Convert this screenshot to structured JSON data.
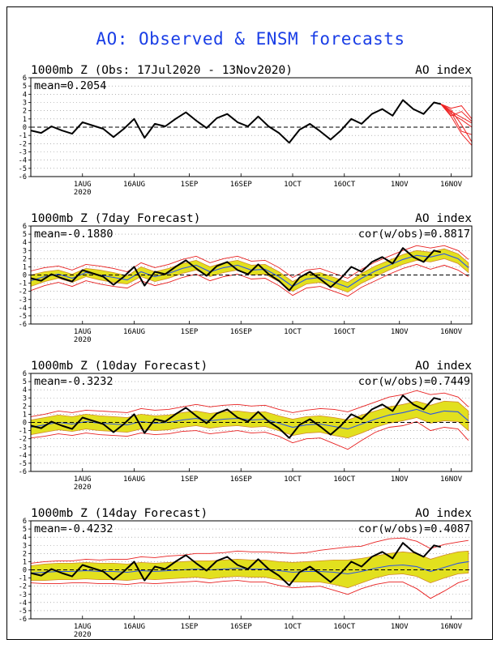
{
  "main_title": "AO: Observed & ENSM forecasts",
  "colors": {
    "title": "#1a3ee6",
    "observed": "#000000",
    "ensemble_mean": "#2a55e8",
    "spread_fill": "#e2e01e",
    "spread_edge": "#d28a2a",
    "envelope": "#e82020",
    "forecast_member": "#ee2222",
    "zero_line": "#000000",
    "grid": "#888888"
  },
  "x_axis": {
    "range": [
      0,
      128
    ],
    "ticks": [
      {
        "value": 15,
        "label": "1AUG",
        "sublabel": "2020"
      },
      {
        "value": 30,
        "label": "16AUG",
        "sublabel": ""
      },
      {
        "value": 46,
        "label": "1SEP",
        "sublabel": ""
      },
      {
        "value": 61,
        "label": "16SEP",
        "sublabel": ""
      },
      {
        "value": 76,
        "label": "1OCT",
        "sublabel": ""
      },
      {
        "value": 91,
        "label": "16OCT",
        "sublabel": ""
      },
      {
        "value": 107,
        "label": "1NOV",
        "sublabel": ""
      },
      {
        "value": 122,
        "label": "16NOV",
        "sublabel": ""
      }
    ]
  },
  "y_axis": {
    "range": [
      -6,
      6
    ],
    "ticks": [
      6,
      5,
      4,
      3,
      2,
      1,
      0,
      -1,
      -2,
      -3,
      -4,
      -5,
      -6
    ],
    "tick_labels": [
      "6",
      "5",
      "4",
      "3",
      "2",
      "1",
      "0",
      "-1",
      "-2",
      "-3",
      "-4",
      "-5",
      "-6"
    ]
  },
  "chart_data": [
    {
      "type": "line",
      "title": "1000mb Z (Obs: 17Jul2020 - 13Nov2020)",
      "index_label": "AO index",
      "mean_label": "mean=0.2054",
      "cor_label": "",
      "observed": {
        "x": [
          0,
          3,
          6,
          9,
          12,
          15,
          18,
          21,
          24,
          27,
          30,
          33,
          36,
          39,
          42,
          45,
          48,
          51,
          54,
          57,
          60,
          63,
          66,
          69,
          72,
          75,
          78,
          81,
          84,
          87,
          90,
          93,
          96,
          99,
          102,
          105,
          108,
          111,
          114,
          117,
          119
        ],
        "y": [
          -0.4,
          -0.7,
          0.1,
          -0.4,
          -0.8,
          0.6,
          0.2,
          -0.2,
          -1.2,
          -0.2,
          1.0,
          -1.3,
          0.4,
          0.1,
          1.0,
          1.8,
          0.8,
          -0.1,
          1.1,
          1.6,
          0.6,
          0.1,
          1.3,
          0.1,
          -0.7,
          -1.9,
          -0.3,
          0.4,
          -0.5,
          -1.5,
          -0.4,
          1.0,
          0.4,
          1.6,
          2.2,
          1.4,
          3.3,
          2.2,
          1.6,
          3.0,
          2.8
        ]
      },
      "forecast_members": [
        {
          "x": [
            119,
            122,
            125,
            128
          ],
          "y": [
            2.8,
            1.9,
            1.2,
            0.5
          ]
        },
        {
          "x": [
            119,
            122,
            125,
            128
          ],
          "y": [
            2.8,
            2.1,
            0.3,
            -1.8
          ]
        },
        {
          "x": [
            119,
            122,
            125,
            128
          ],
          "y": [
            2.8,
            1.3,
            -0.8,
            -2.2
          ]
        },
        {
          "x": [
            119,
            122,
            125,
            128
          ],
          "y": [
            2.8,
            2.3,
            2.6,
            1.0
          ]
        },
        {
          "x": [
            119,
            122,
            125,
            128
          ],
          "y": [
            2.8,
            1.6,
            0.9,
            0.0
          ]
        },
        {
          "x": [
            119,
            122,
            125,
            128
          ],
          "y": [
            2.8,
            1.8,
            -0.5,
            -0.9
          ]
        },
        {
          "x": [
            119,
            122,
            125,
            128
          ],
          "y": [
            2.8,
            1.4,
            1.9,
            0.7
          ]
        }
      ]
    },
    {
      "type": "area",
      "title": "1000mb Z (7day Forecast)",
      "index_label": "AO index",
      "mean_label": "mean=-0.1880",
      "cor_label": "cor(w/obs)=0.8817",
      "observed": {
        "x": [
          0,
          3,
          6,
          9,
          12,
          15,
          18,
          21,
          24,
          27,
          30,
          33,
          36,
          39,
          42,
          45,
          48,
          51,
          54,
          57,
          60,
          63,
          66,
          69,
          72,
          75,
          78,
          81,
          84,
          87,
          90,
          93,
          96,
          99,
          102,
          105,
          108,
          111,
          114,
          117,
          119
        ],
        "y": [
          -0.4,
          -0.7,
          0.1,
          -0.4,
          -0.8,
          0.6,
          0.2,
          -0.2,
          -1.2,
          -0.2,
          1.0,
          -1.3,
          0.4,
          0.1,
          1.0,
          1.8,
          0.8,
          -0.1,
          1.1,
          1.6,
          0.6,
          0.1,
          1.3,
          0.1,
          -0.7,
          -1.9,
          -0.3,
          0.4,
          -0.5,
          -1.5,
          -0.4,
          1.0,
          0.4,
          1.6,
          2.2,
          1.4,
          3.3,
          2.2,
          1.6,
          3.0,
          2.8
        ]
      },
      "ensemble": {
        "x": [
          0,
          4,
          8,
          12,
          16,
          20,
          24,
          28,
          32,
          36,
          40,
          44,
          48,
          52,
          56,
          60,
          64,
          68,
          72,
          76,
          80,
          84,
          88,
          92,
          96,
          100,
          104,
          108,
          112,
          116,
          120,
          124,
          127
        ],
        "mean": [
          -0.7,
          -0.2,
          0.1,
          -0.4,
          0.3,
          0.0,
          -0.3,
          -0.6,
          0.4,
          -0.2,
          0.2,
          0.8,
          1.2,
          0.4,
          0.9,
          1.2,
          0.6,
          0.7,
          -0.2,
          -1.4,
          -0.5,
          -0.3,
          -0.9,
          -1.5,
          -0.4,
          0.5,
          1.2,
          1.9,
          2.4,
          2.2,
          2.6,
          2.0,
          0.9
        ],
        "spread_low": [
          -1.4,
          -0.8,
          -0.4,
          -0.9,
          -0.2,
          -0.6,
          -0.9,
          -1.1,
          -0.2,
          -0.8,
          -0.4,
          0.2,
          0.6,
          -0.2,
          0.3,
          0.6,
          0.0,
          0.1,
          -0.8,
          -2.0,
          -1.1,
          -0.9,
          -1.5,
          -2.1,
          -1.0,
          -0.2,
          0.6,
          1.3,
          1.8,
          1.6,
          2.0,
          1.4,
          0.3
        ],
        "spread_high": [
          0.0,
          0.4,
          0.6,
          0.1,
          0.8,
          0.6,
          0.3,
          -0.1,
          1.0,
          0.4,
          0.8,
          1.4,
          1.8,
          1.0,
          1.5,
          1.8,
          1.2,
          1.3,
          0.4,
          -0.8,
          0.1,
          0.3,
          -0.3,
          -0.9,
          0.2,
          1.1,
          1.8,
          2.5,
          3.0,
          2.8,
          3.2,
          2.6,
          1.5
        ],
        "env_low": [
          -1.9,
          -1.3,
          -0.9,
          -1.4,
          -0.7,
          -1.1,
          -1.4,
          -1.6,
          -0.7,
          -1.3,
          -0.9,
          -0.3,
          0.1,
          -0.7,
          -0.2,
          0.1,
          -0.5,
          -0.4,
          -1.3,
          -2.5,
          -1.6,
          -1.4,
          -2.0,
          -2.6,
          -1.5,
          -0.7,
          0.1,
          0.8,
          1.3,
          0.7,
          1.2,
          0.6,
          -0.2
        ],
        "env_high": [
          0.5,
          0.9,
          1.1,
          0.6,
          1.3,
          1.1,
          0.8,
          0.4,
          1.5,
          0.9,
          1.3,
          1.9,
          2.3,
          1.5,
          2.0,
          2.3,
          1.7,
          1.8,
          0.9,
          -0.3,
          0.6,
          0.8,
          0.2,
          -0.4,
          0.7,
          1.6,
          2.3,
          3.0,
          3.6,
          3.3,
          3.6,
          3.0,
          1.9
        ]
      }
    },
    {
      "type": "area",
      "title": "1000mb Z (10day Forecast)",
      "index_label": "AO index",
      "mean_label": "mean=-0.3232",
      "cor_label": "cor(w/obs)=0.7449",
      "observed": {
        "x": [
          0,
          3,
          6,
          9,
          12,
          15,
          18,
          21,
          24,
          27,
          30,
          33,
          36,
          39,
          42,
          45,
          48,
          51,
          54,
          57,
          60,
          63,
          66,
          69,
          72,
          75,
          78,
          81,
          84,
          87,
          90,
          93,
          96,
          99,
          102,
          105,
          108,
          111,
          114,
          117,
          119
        ],
        "y": [
          -0.4,
          -0.7,
          0.1,
          -0.4,
          -0.8,
          0.6,
          0.2,
          -0.2,
          -1.2,
          -0.2,
          1.0,
          -1.3,
          0.4,
          0.1,
          1.0,
          1.8,
          0.8,
          -0.1,
          1.1,
          1.6,
          0.6,
          0.1,
          1.3,
          0.1,
          -0.7,
          -1.9,
          -0.3,
          0.4,
          -0.5,
          -1.5,
          -0.4,
          1.0,
          0.4,
          1.6,
          2.2,
          1.4,
          3.3,
          2.2,
          1.6,
          3.0,
          2.8
        ]
      },
      "ensemble": {
        "x": [
          0,
          4,
          8,
          12,
          16,
          20,
          24,
          28,
          32,
          36,
          40,
          44,
          48,
          52,
          56,
          60,
          64,
          68,
          72,
          76,
          80,
          84,
          88,
          92,
          96,
          100,
          104,
          108,
          112,
          116,
          120,
          124,
          127
        ],
        "mean": [
          -0.6,
          -0.3,
          0.0,
          -0.2,
          0.1,
          -0.1,
          -0.2,
          -0.3,
          0.1,
          -0.1,
          0.0,
          0.3,
          0.5,
          0.2,
          0.4,
          0.5,
          0.3,
          0.4,
          -0.1,
          -0.6,
          -0.3,
          -0.2,
          -0.5,
          -0.8,
          -0.2,
          0.4,
          0.9,
          1.2,
          1.6,
          1.0,
          1.4,
          1.3,
          0.2
        ],
        "spread_low": [
          -1.5,
          -1.2,
          -0.9,
          -1.1,
          -0.8,
          -1.0,
          -1.1,
          -1.2,
          -0.8,
          -1.0,
          -0.9,
          -0.6,
          -0.4,
          -0.7,
          -0.5,
          -0.4,
          -0.6,
          -0.5,
          -1.0,
          -1.6,
          -1.3,
          -1.2,
          -1.6,
          -1.9,
          -1.3,
          -0.6,
          -0.1,
          0.2,
          0.6,
          -0.1,
          0.2,
          0.1,
          -1.0
        ],
        "spread_high": [
          0.3,
          0.6,
          0.9,
          0.7,
          1.0,
          0.8,
          0.7,
          0.6,
          1.0,
          0.8,
          0.9,
          1.2,
          1.4,
          1.1,
          1.3,
          1.4,
          1.2,
          1.3,
          0.8,
          0.4,
          0.7,
          0.8,
          0.6,
          0.3,
          0.9,
          1.4,
          1.9,
          2.2,
          2.6,
          2.1,
          2.6,
          2.5,
          1.4
        ],
        "env_low": [
          -1.9,
          -1.7,
          -1.4,
          -1.6,
          -1.3,
          -1.5,
          -1.6,
          -1.7,
          -1.3,
          -1.5,
          -1.4,
          -1.1,
          -1.0,
          -1.4,
          -1.2,
          -1.0,
          -1.3,
          -1.2,
          -1.7,
          -2.5,
          -2.0,
          -1.9,
          -2.6,
          -3.3,
          -2.2,
          -1.2,
          -0.6,
          -0.4,
          0.1,
          -1.0,
          -0.6,
          -0.8,
          -2.2
        ],
        "env_high": [
          0.7,
          1.0,
          1.4,
          1.2,
          1.5,
          1.4,
          1.3,
          1.2,
          1.7,
          1.5,
          1.6,
          1.9,
          2.2,
          1.9,
          2.1,
          2.2,
          2.0,
          2.1,
          1.6,
          1.2,
          1.5,
          1.7,
          1.6,
          1.3,
          1.9,
          2.5,
          3.1,
          3.4,
          3.9,
          3.4,
          3.6,
          3.1,
          1.9
        ]
      }
    },
    {
      "type": "area",
      "title": "1000mb Z (14day Forecast)",
      "index_label": "AO index",
      "mean_label": "mean=-0.4232",
      "cor_label": "cor(w/obs)=0.4087",
      "observed": {
        "x": [
          0,
          3,
          6,
          9,
          12,
          15,
          18,
          21,
          24,
          27,
          30,
          33,
          36,
          39,
          42,
          45,
          48,
          51,
          54,
          57,
          60,
          63,
          66,
          69,
          72,
          75,
          78,
          81,
          84,
          87,
          90,
          93,
          96,
          99,
          102,
          105,
          108,
          111,
          114,
          117,
          119
        ],
        "y": [
          -0.4,
          -0.7,
          0.1,
          -0.4,
          -0.8,
          0.6,
          0.2,
          -0.2,
          -1.2,
          -0.2,
          1.0,
          -1.3,
          0.4,
          0.1,
          1.0,
          1.8,
          0.8,
          -0.1,
          1.1,
          1.6,
          0.6,
          0.1,
          1.3,
          0.1,
          -0.7,
          -1.9,
          -0.3,
          0.4,
          -0.5,
          -1.5,
          -0.4,
          1.0,
          0.4,
          1.6,
          2.2,
          1.4,
          3.3,
          2.2,
          1.6,
          3.0,
          2.8
        ]
      },
      "ensemble": {
        "x": [
          0,
          4,
          8,
          12,
          16,
          20,
          24,
          28,
          32,
          36,
          40,
          44,
          48,
          52,
          56,
          60,
          64,
          68,
          72,
          76,
          80,
          84,
          88,
          92,
          96,
          100,
          104,
          108,
          112,
          116,
          120,
          124,
          127
        ],
        "mean": [
          -0.4,
          -0.3,
          -0.2,
          -0.2,
          -0.1,
          -0.2,
          -0.2,
          -0.3,
          -0.1,
          -0.2,
          -0.1,
          0.0,
          0.1,
          0.0,
          0.1,
          0.2,
          0.1,
          0.1,
          -0.1,
          -0.3,
          -0.2,
          -0.2,
          -0.3,
          -0.5,
          -0.2,
          0.2,
          0.5,
          0.6,
          0.4,
          -0.2,
          0.3,
          0.8,
          1.0
        ],
        "spread_low": [
          -1.3,
          -1.3,
          -1.2,
          -1.2,
          -1.1,
          -1.2,
          -1.2,
          -1.3,
          -1.1,
          -1.2,
          -1.1,
          -1.0,
          -0.9,
          -1.1,
          -0.9,
          -0.8,
          -0.9,
          -0.9,
          -1.2,
          -1.5,
          -1.5,
          -1.5,
          -1.8,
          -2.2,
          -1.6,
          -1.0,
          -0.6,
          -0.5,
          -0.8,
          -1.6,
          -1.0,
          -0.5,
          -0.4
        ],
        "spread_high": [
          0.5,
          0.7,
          0.8,
          0.8,
          0.9,
          0.8,
          0.8,
          0.7,
          0.9,
          0.8,
          0.9,
          1.0,
          1.1,
          1.1,
          1.2,
          1.3,
          1.2,
          1.2,
          1.0,
          0.9,
          1.0,
          1.1,
          1.2,
          1.2,
          1.4,
          1.7,
          2.0,
          2.2,
          2.0,
          1.3,
          1.8,
          2.2,
          2.3
        ],
        "env_low": [
          -1.6,
          -1.7,
          -1.7,
          -1.6,
          -1.6,
          -1.7,
          -1.7,
          -1.8,
          -1.6,
          -1.7,
          -1.6,
          -1.5,
          -1.4,
          -1.6,
          -1.4,
          -1.3,
          -1.5,
          -1.5,
          -1.9,
          -2.2,
          -2.1,
          -2.0,
          -2.5,
          -3.0,
          -2.3,
          -1.8,
          -1.5,
          -1.5,
          -2.3,
          -3.5,
          -2.6,
          -1.6,
          -1.2
        ],
        "env_high": [
          0.8,
          1.0,
          1.1,
          1.1,
          1.3,
          1.2,
          1.3,
          1.3,
          1.6,
          1.5,
          1.7,
          1.8,
          2.0,
          2.0,
          2.1,
          2.3,
          2.2,
          2.2,
          2.1,
          2.0,
          2.1,
          2.4,
          2.6,
          2.8,
          2.9,
          3.4,
          3.8,
          3.9,
          3.5,
          2.6,
          3.1,
          3.4,
          3.6
        ]
      }
    }
  ]
}
